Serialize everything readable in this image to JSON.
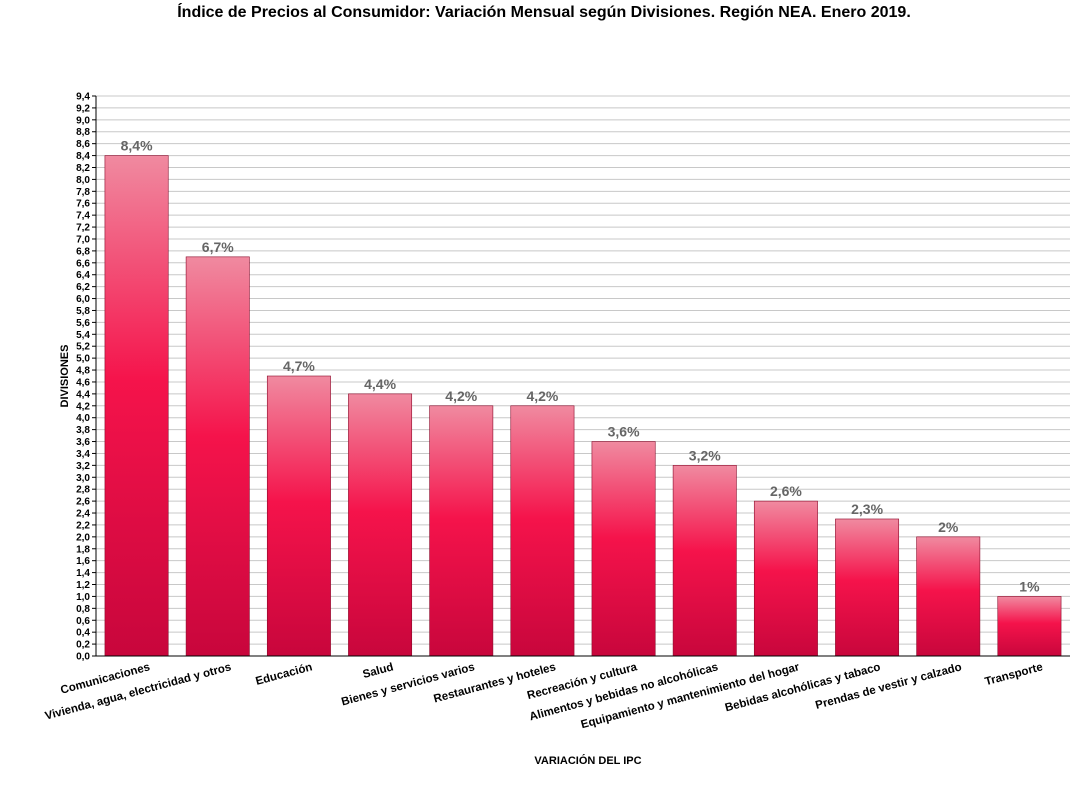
{
  "chart_data": {
    "type": "bar",
    "title": "Índice de Precios al Consumidor: Variación Mensual según Divisiones. Región NEA. Enero 2019.",
    "xlabel": "VARIACIÓN DEL IPC",
    "ylabel": "DIVISIONES",
    "ylim": [
      0,
      9.4
    ],
    "ytick_step": 0.2,
    "grid": true,
    "legend": "none",
    "categories": [
      "Comunicaciones",
      "Vivienda, agua, electricidad y otros",
      "Educación",
      "Salud",
      "Bienes y servicios varios",
      "Restaurantes y hoteles",
      "Recreación y cultura",
      "Alimentos y bebidas no alcohólicas",
      "Equipamiento y mantenimiento del hogar",
      "Bebidas alcohólicas y tabaco",
      "Prendas de vestir y calzado",
      "Transporte"
    ],
    "values": [
      8.4,
      6.7,
      4.7,
      4.4,
      4.2,
      4.2,
      3.6,
      3.2,
      2.6,
      2.3,
      2,
      1
    ],
    "data_labels": [
      "8,4%",
      "6,7%",
      "4,7%",
      "4,4%",
      "4,2%",
      "4,2%",
      "3,6%",
      "3,2%",
      "2,6%",
      "2,3%",
      "2%",
      "1%"
    ],
    "colors": {
      "bar_top": "#f08aa0",
      "bar_mid": "#f5134b",
      "bar_bottom": "#c8063c",
      "grid": "#c8c8c8",
      "label": "#666666"
    }
  }
}
